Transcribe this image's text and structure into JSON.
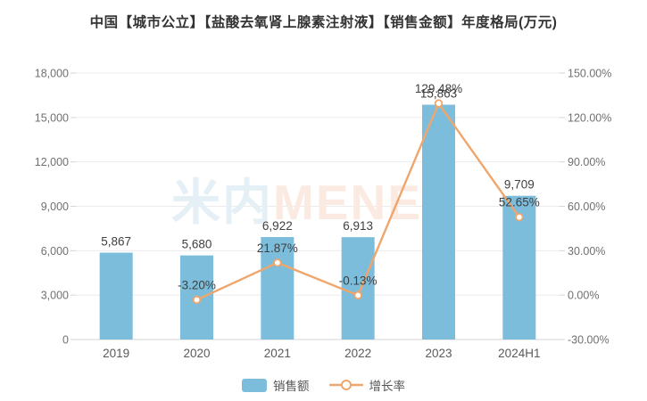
{
  "title": "中国【城市公立】【盐酸去氧肾上腺素注射液】【销售金额】年度格局(万元)",
  "watermark": {
    "text_cn": "米内",
    "text_en": "MENET"
  },
  "colors": {
    "bar": "#7CBDDC",
    "line": "#EFA66C",
    "marker_fill": "#FFFFFF",
    "grid": "#EBEBEB",
    "axis_line": "#D5D5D5",
    "title_text": "#333333",
    "axis_text": "#707070",
    "label_text": "#404040",
    "watermark_cn": "#E4EFF6",
    "watermark_en": "#FBEAE1"
  },
  "legend": [
    {
      "label": "销售额",
      "type": "bar"
    },
    {
      "label": "增长率",
      "type": "line"
    }
  ],
  "chart_data": {
    "type": "bar+line",
    "title": "中国【城市公立】【盐酸去氧肾上腺素注射液】【销售金额】年度格局(万元)",
    "categories": [
      "2019",
      "2020",
      "2021",
      "2022",
      "2023",
      "2024H1"
    ],
    "series": [
      {
        "name": "销售额",
        "type": "bar",
        "axis": "left",
        "values": [
          5867,
          5680,
          6922,
          6913,
          15863,
          9709
        ],
        "labels": [
          "5,867",
          "5,680",
          "6,922",
          "6,913",
          "15,863",
          "9,709"
        ]
      },
      {
        "name": "增长率",
        "type": "line",
        "axis": "right",
        "values": [
          null,
          -3.2,
          21.87,
          -0.13,
          129.48,
          52.65
        ],
        "labels": [
          null,
          "-3.20%",
          "21.87%",
          "-0.13%",
          "129.48%",
          "52.65%"
        ]
      }
    ],
    "left_axis": {
      "min": 0,
      "max": 18000,
      "ticks": [
        "0",
        "3,000",
        "6,000",
        "9,000",
        "12,000",
        "15,000",
        "18,000"
      ]
    },
    "right_axis": {
      "min": -30,
      "max": 150,
      "ticks": [
        "-30.00%",
        "0.00%",
        "30.00%",
        "60.00%",
        "90.00%",
        "120.00%",
        "150.00%"
      ]
    },
    "grid": true,
    "legend_position": "bottom"
  }
}
